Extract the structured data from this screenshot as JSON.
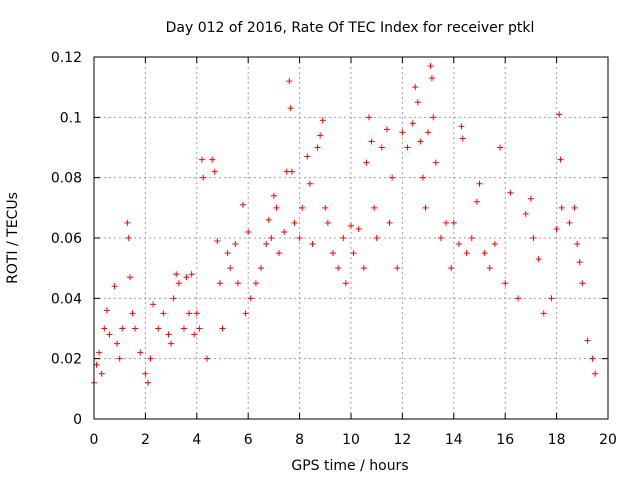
{
  "chart_data": {
    "type": "scatter",
    "title": "Day 012 of 2016, Rate Of TEC Index for receiver ptkl",
    "xlabel": "GPS time / hours",
    "ylabel": "ROTI / TECUs",
    "xlim": [
      0,
      20
    ],
    "ylim": [
      0,
      0.12
    ],
    "xticks": [
      0,
      2,
      4,
      6,
      8,
      10,
      12,
      14,
      16,
      18,
      20
    ],
    "xtick_labels": [
      "0",
      "2",
      "4",
      "6",
      "8",
      "10",
      "12",
      "14",
      "16",
      "18",
      "20"
    ],
    "yticks": [
      0,
      0.02,
      0.04,
      0.06,
      0.08,
      0.1,
      0.12
    ],
    "ytick_labels": [
      "0",
      "0.02",
      "0.04",
      "0.06",
      "0.08",
      "0.1",
      "0.12"
    ],
    "grid": true,
    "marker": "+",
    "color": "#ff0000",
    "series": [
      {
        "name": "ROTI",
        "points": [
          [
            0.0,
            0.012
          ],
          [
            0.1,
            0.018
          ],
          [
            0.2,
            0.022
          ],
          [
            0.3,
            0.015
          ],
          [
            0.4,
            0.03
          ],
          [
            0.5,
            0.036
          ],
          [
            0.6,
            0.028
          ],
          [
            0.8,
            0.044
          ],
          [
            0.9,
            0.025
          ],
          [
            1.0,
            0.02
          ],
          [
            1.1,
            0.03
          ],
          [
            1.3,
            0.065
          ],
          [
            1.35,
            0.06
          ],
          [
            1.4,
            0.047
          ],
          [
            1.5,
            0.035
          ],
          [
            1.6,
            0.03
          ],
          [
            1.8,
            0.022
          ],
          [
            2.0,
            0.015
          ],
          [
            2.1,
            0.012
          ],
          [
            2.2,
            0.02
          ],
          [
            2.3,
            0.038
          ],
          [
            2.5,
            0.03
          ],
          [
            2.7,
            0.035
          ],
          [
            2.9,
            0.028
          ],
          [
            3.0,
            0.025
          ],
          [
            3.1,
            0.04
          ],
          [
            3.2,
            0.048
          ],
          [
            3.3,
            0.045
          ],
          [
            3.5,
            0.03
          ],
          [
            3.6,
            0.047
          ],
          [
            3.7,
            0.035
          ],
          [
            3.8,
            0.048
          ],
          [
            3.9,
            0.028
          ],
          [
            4.0,
            0.035
          ],
          [
            4.1,
            0.03
          ],
          [
            4.2,
            0.086
          ],
          [
            4.25,
            0.08
          ],
          [
            4.4,
            0.02
          ],
          [
            4.6,
            0.086
          ],
          [
            4.7,
            0.082
          ],
          [
            4.8,
            0.059
          ],
          [
            4.9,
            0.045
          ],
          [
            5.0,
            0.03
          ],
          [
            5.2,
            0.055
          ],
          [
            5.3,
            0.05
          ],
          [
            5.5,
            0.058
          ],
          [
            5.6,
            0.045
          ],
          [
            5.8,
            0.071
          ],
          [
            5.9,
            0.035
          ],
          [
            6.0,
            0.062
          ],
          [
            6.1,
            0.04
          ],
          [
            6.3,
            0.045
          ],
          [
            6.5,
            0.05
          ],
          [
            6.7,
            0.058
          ],
          [
            6.8,
            0.066
          ],
          [
            6.9,
            0.06
          ],
          [
            7.0,
            0.074
          ],
          [
            7.1,
            0.07
          ],
          [
            7.2,
            0.055
          ],
          [
            7.4,
            0.062
          ],
          [
            7.5,
            0.082
          ],
          [
            7.6,
            0.112
          ],
          [
            7.65,
            0.103
          ],
          [
            7.7,
            0.082
          ],
          [
            7.8,
            0.065
          ],
          [
            8.0,
            0.06
          ],
          [
            8.1,
            0.07
          ],
          [
            8.3,
            0.087
          ],
          [
            8.4,
            0.078
          ],
          [
            8.5,
            0.058
          ],
          [
            8.7,
            0.09
          ],
          [
            8.8,
            0.094
          ],
          [
            8.9,
            0.099
          ],
          [
            9.0,
            0.07
          ],
          [
            9.1,
            0.065
          ],
          [
            9.3,
            0.055
          ],
          [
            9.5,
            0.05
          ],
          [
            9.7,
            0.06
          ],
          [
            9.8,
            0.045
          ],
          [
            10.0,
            0.064
          ],
          [
            10.1,
            0.055
          ],
          [
            10.3,
            0.063
          ],
          [
            10.5,
            0.05
          ],
          [
            10.6,
            0.085
          ],
          [
            10.7,
            0.1
          ],
          [
            10.8,
            0.092
          ],
          [
            10.9,
            0.07
          ],
          [
            11.0,
            0.06
          ],
          [
            11.2,
            0.09
          ],
          [
            11.4,
            0.096
          ],
          [
            11.5,
            0.065
          ],
          [
            11.6,
            0.08
          ],
          [
            11.8,
            0.05
          ],
          [
            12.0,
            0.095
          ],
          [
            12.2,
            0.09
          ],
          [
            12.4,
            0.098
          ],
          [
            12.5,
            0.11
          ],
          [
            12.6,
            0.105
          ],
          [
            12.7,
            0.092
          ],
          [
            12.8,
            0.08
          ],
          [
            12.9,
            0.07
          ],
          [
            13.0,
            0.095
          ],
          [
            13.1,
            0.117
          ],
          [
            13.15,
            0.113
          ],
          [
            13.2,
            0.1
          ],
          [
            13.3,
            0.085
          ],
          [
            13.5,
            0.06
          ],
          [
            13.7,
            0.065
          ],
          [
            13.9,
            0.05
          ],
          [
            14.0,
            0.065
          ],
          [
            14.2,
            0.058
          ],
          [
            14.3,
            0.097
          ],
          [
            14.35,
            0.093
          ],
          [
            14.5,
            0.055
          ],
          [
            14.7,
            0.06
          ],
          [
            14.9,
            0.072
          ],
          [
            15.0,
            0.078
          ],
          [
            15.2,
            0.055
          ],
          [
            15.4,
            0.05
          ],
          [
            15.6,
            0.058
          ],
          [
            15.8,
            0.09
          ],
          [
            16.0,
            0.045
          ],
          [
            16.2,
            0.075
          ],
          [
            16.5,
            0.04
          ],
          [
            16.8,
            0.068
          ],
          [
            17.0,
            0.073
          ],
          [
            17.1,
            0.06
          ],
          [
            17.3,
            0.053
          ],
          [
            17.5,
            0.035
          ],
          [
            17.8,
            0.04
          ],
          [
            18.0,
            0.063
          ],
          [
            18.1,
            0.101
          ],
          [
            18.15,
            0.086
          ],
          [
            18.2,
            0.07
          ],
          [
            18.5,
            0.065
          ],
          [
            18.7,
            0.07
          ],
          [
            18.8,
            0.058
          ],
          [
            18.9,
            0.052
          ],
          [
            19.0,
            0.045
          ],
          [
            19.2,
            0.026
          ],
          [
            19.4,
            0.02
          ],
          [
            19.5,
            0.015
          ]
        ]
      }
    ]
  }
}
